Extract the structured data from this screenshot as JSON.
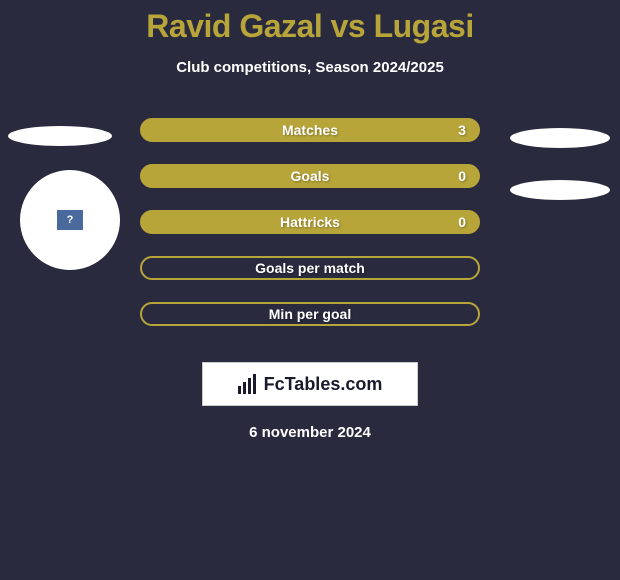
{
  "header": {
    "title": "Ravid Gazal vs Lugasi",
    "subtitle": "Club competitions, Season 2024/2025"
  },
  "stats": [
    {
      "label": "Matches",
      "value": "3",
      "filled": true
    },
    {
      "label": "Goals",
      "value": "0",
      "filled": true
    },
    {
      "label": "Hattricks",
      "value": "0",
      "filled": true
    },
    {
      "label": "Goals per match",
      "value": "",
      "filled": false
    },
    {
      "label": "Min per goal",
      "value": "",
      "filled": false
    }
  ],
  "footer": {
    "logo_text": "FcTables.com",
    "date": "6 november 2024"
  },
  "avatar": {
    "placeholder_mark": "?"
  },
  "style": {
    "accent": "#b8a53a",
    "background": "#2a2a3e",
    "text": "#ffffff",
    "logo_dark": "#1a1a2e",
    "avatar_inner": "#4a6a9e",
    "title_fontsize": 32,
    "subtitle_fontsize": 15,
    "stat_row_width": 340,
    "stat_row_height": 24,
    "stat_row_radius": 12
  }
}
